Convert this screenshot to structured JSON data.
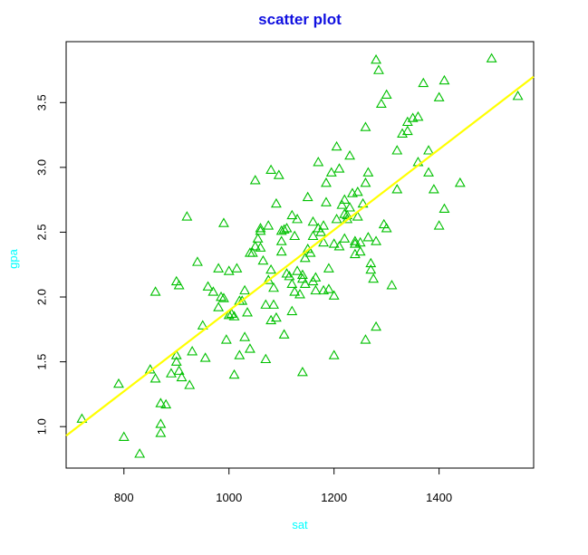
{
  "chart_data": {
    "type": "scatter",
    "title": "scatter plot",
    "xlabel": "sat",
    "ylabel": "gpa",
    "xlim": [
      690,
      1580
    ],
    "ylim": [
      0.68,
      3.97
    ],
    "xticks": [
      800,
      1000,
      1200,
      1400
    ],
    "yticks": [
      1.0,
      1.5,
      2.0,
      2.5,
      3.0,
      3.5
    ],
    "ytick_labels": [
      "1.0",
      "1.5",
      "2.0",
      "2.5",
      "3.0",
      "3.5"
    ],
    "marker": "open-triangle",
    "grid": false,
    "colors": {
      "title": "#1010e0",
      "axis_label": "#00ffff",
      "points": "#00c000",
      "fit_line": "#ffff00"
    },
    "fit_line": {
      "x": [
        690,
        1580
      ],
      "y": [
        0.93,
        3.7
      ]
    },
    "x": [
      720,
      790,
      800,
      830,
      850,
      860,
      870,
      870,
      870,
      880,
      890,
      900,
      900,
      905,
      905,
      910,
      920,
      925,
      930,
      950,
      955,
      970,
      980,
      980,
      985,
      990,
      995,
      1000,
      1005,
      1010,
      1015,
      1020,
      1025,
      1030,
      1035,
      1040,
      1045,
      1050,
      1055,
      1060,
      1065,
      1070,
      1075,
      1080,
      1085,
      1090,
      1095,
      1100,
      1105,
      1110,
      1115,
      1120,
      1125,
      1130,
      1135,
      1140,
      1145,
      1150,
      1155,
      1160,
      1165,
      1170,
      1175,
      1180,
      1185,
      1190,
      1195,
      1200,
      1205,
      1210,
      1215,
      1220,
      1225,
      1230,
      1235,
      1240,
      1245,
      1250,
      1255,
      1260,
      1265,
      1270,
      1275,
      1280,
      1285,
      1290,
      1295,
      1300,
      1310,
      1320,
      1330,
      1340,
      1350,
      1360,
      1370,
      1380,
      1390,
      1400,
      1410,
      1440,
      1500,
      1550,
      860,
      900,
      940,
      960,
      990,
      1010,
      1030,
      1050,
      1070,
      1080,
      1100,
      1120,
      1140,
      1160,
      1180,
      1200,
      1220,
      1240,
      1260,
      1280,
      1075,
      1090,
      1110,
      1130,
      1150,
      1170,
      1190,
      1210,
      1230,
      1250,
      1270,
      1060,
      1085,
      1105,
      1125,
      1145,
      1165,
      1185,
      1205,
      1225,
      1245,
      1265,
      1000,
      1020,
      1040,
      1060,
      1080,
      1100,
      1120,
      1140,
      1160,
      1180,
      1200,
      1220,
      1240,
      1260,
      1280,
      1300,
      1320,
      1340,
      1360,
      1380,
      1400,
      1410
    ],
    "y": [
      1.06,
      1.33,
      0.92,
      0.79,
      1.44,
      1.37,
      1.18,
      1.02,
      0.95,
      1.17,
      1.41,
      1.5,
      1.55,
      1.43,
      2.09,
      1.38,
      2.62,
      1.32,
      1.58,
      1.78,
      1.53,
      2.04,
      1.92,
      2.22,
      2.0,
      2.57,
      1.67,
      2.2,
      1.87,
      1.4,
      2.22,
      1.55,
      1.97,
      1.69,
      1.88,
      1.6,
      2.34,
      2.9,
      2.45,
      2.38,
      2.28,
      1.52,
      2.13,
      2.98,
      2.07,
      1.84,
      2.94,
      2.43,
      1.71,
      2.53,
      2.16,
      2.63,
      2.47,
      2.2,
      2.02,
      1.42,
      2.1,
      2.77,
      2.34,
      2.47,
      2.15,
      3.04,
      2.5,
      2.42,
      2.88,
      2.22,
      2.96,
      1.55,
      3.16,
      2.99,
      2.71,
      2.64,
      2.6,
      3.09,
      2.8,
      2.33,
      2.62,
      2.42,
      2.72,
      3.31,
      2.96,
      2.26,
      2.14,
      3.83,
      3.75,
      3.49,
      2.56,
      3.56,
      2.09,
      3.13,
      3.26,
      3.35,
      3.38,
      3.04,
      3.65,
      3.13,
      2.83,
      3.54,
      3.67,
      2.88,
      3.84,
      3.55,
      2.04,
      2.12,
      2.27,
      2.08,
      1.99,
      1.85,
      2.05,
      2.39,
      1.94,
      1.82,
      2.35,
      1.89,
      2.14,
      2.12,
      2.05,
      2.41,
      2.45,
      2.41,
      1.67,
      1.77,
      2.55,
      2.72,
      2.18,
      2.6,
      2.37,
      2.53,
      2.06,
      2.39,
      2.69,
      2.35,
      2.21,
      2.51,
      1.94,
      2.52,
      2.04,
      2.3,
      2.05,
      2.73,
      2.6,
      2.63,
      2.81,
      2.46,
      1.86,
      1.97,
      2.34,
      2.53,
      2.21,
      2.51,
      2.1,
      2.17,
      2.58,
      2.55,
      2.01,
      2.75,
      2.43,
      2.88,
      2.43,
      2.53,
      2.83,
      3.28,
      3.39,
      2.96,
      2.55,
      2.68
    ]
  }
}
